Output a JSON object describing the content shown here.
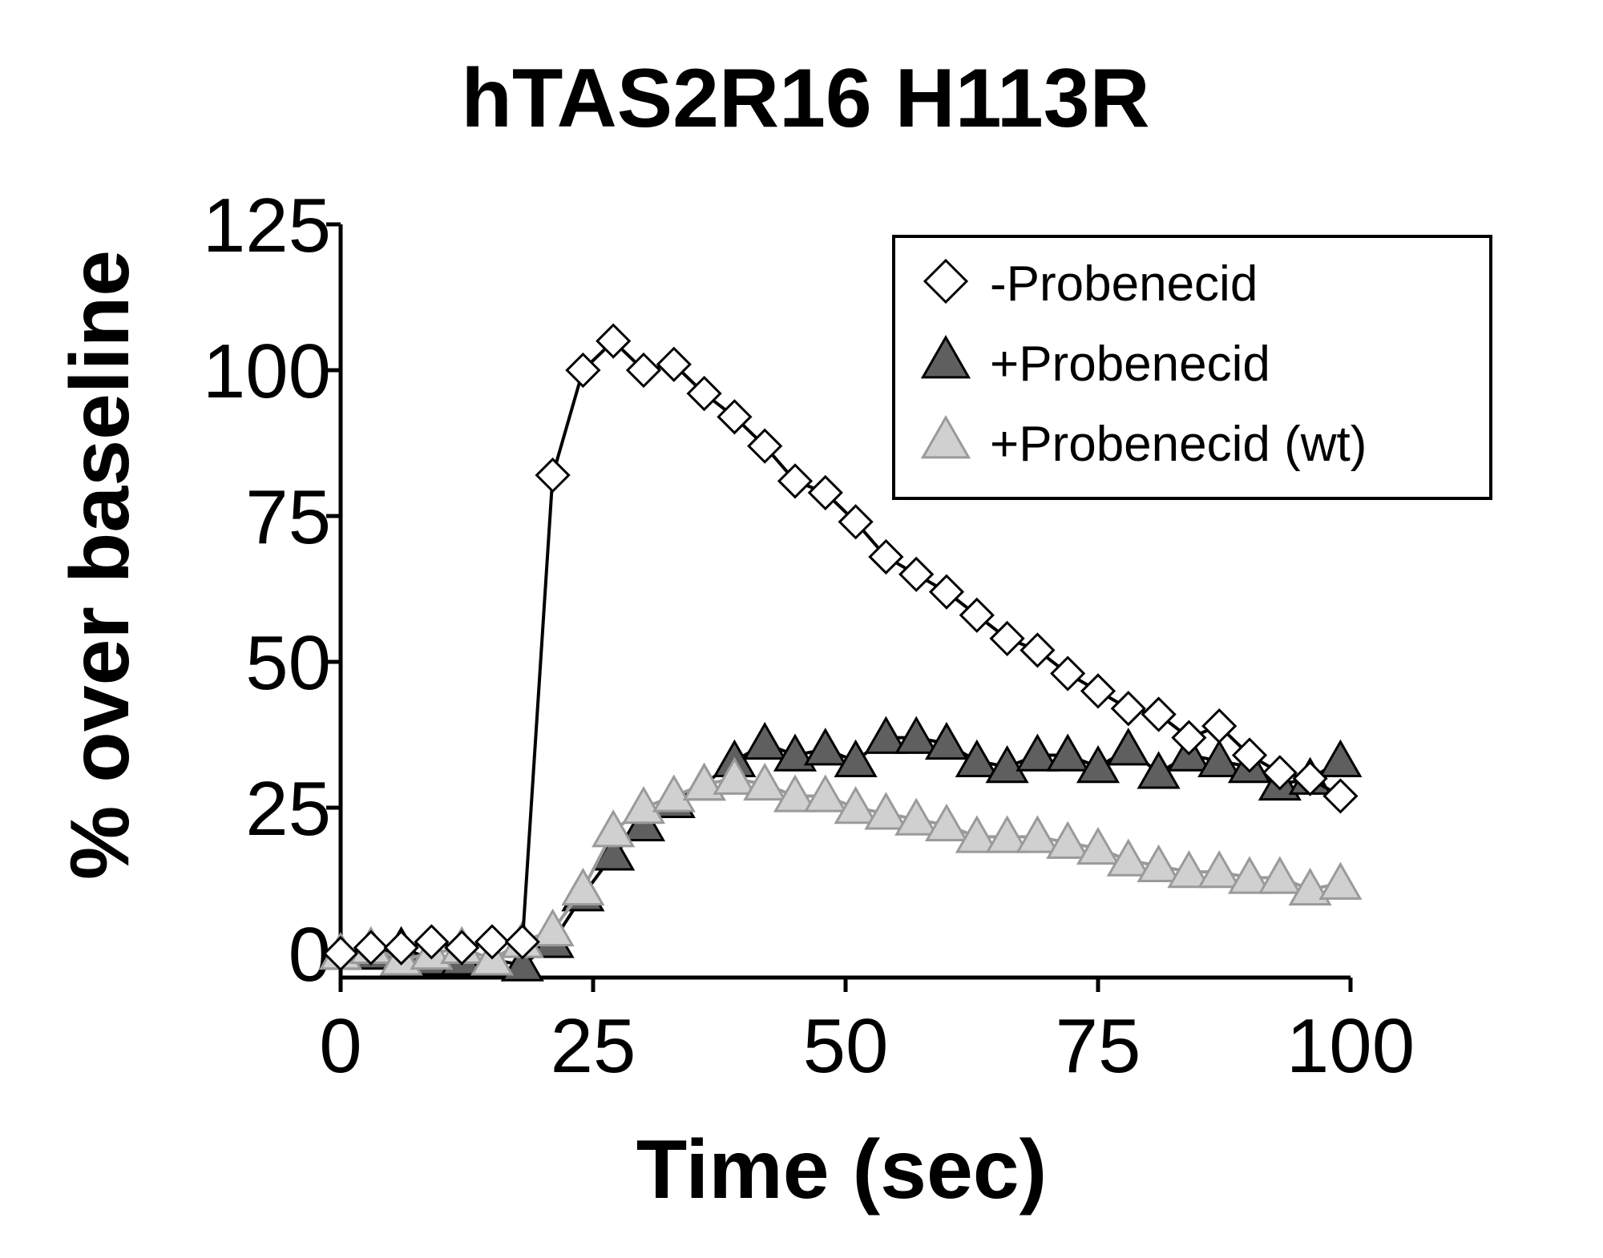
{
  "chart_data": {
    "type": "line",
    "title": "hTAS2R16 H113R",
    "xlabel": "Time (sec)",
    "ylabel": "% over baseline",
    "xlim": [
      0,
      100
    ],
    "ylim": [
      0,
      125
    ],
    "xticks": [
      "0",
      "25",
      "50",
      "75",
      "100"
    ],
    "yticks": [
      "0",
      "25",
      "50",
      "75",
      "100",
      "125"
    ],
    "grid": false,
    "legend_position": "top-right",
    "series": [
      {
        "name": "-Probenecid",
        "marker": "diamond",
        "fill": "#ffffff",
        "stroke": "#000000",
        "line": "#000000",
        "x": [
          0,
          3,
          6,
          9,
          12,
          15,
          18,
          21,
          24,
          27,
          30,
          33,
          36,
          39,
          42,
          45,
          48,
          51,
          54,
          57,
          60,
          63,
          66,
          69,
          72,
          75,
          78,
          81,
          84,
          87,
          90,
          93,
          96,
          99
        ],
        "values": [
          0,
          1,
          1,
          2,
          1,
          2,
          2,
          82,
          100,
          105,
          100,
          101,
          96,
          92,
          87,
          81,
          79,
          74,
          68,
          65,
          62,
          58,
          54,
          52,
          48,
          45,
          42,
          41,
          37,
          39,
          34,
          31,
          30,
          27
        ]
      },
      {
        "name": "+Probenecid",
        "marker": "triangle",
        "fill": "#5f5f5f",
        "stroke": "#000000",
        "line": "#000000",
        "x": [
          0,
          3,
          6,
          9,
          12,
          15,
          18,
          21,
          24,
          27,
          30,
          33,
          36,
          39,
          42,
          45,
          48,
          51,
          54,
          57,
          60,
          63,
          66,
          69,
          72,
          75,
          78,
          81,
          84,
          87,
          90,
          93,
          96,
          99
        ],
        "values": [
          0,
          0,
          1,
          -1,
          -1,
          -1,
          -2,
          2,
          10,
          17,
          22,
          26,
          29,
          33,
          36,
          34,
          35,
          33,
          37,
          37,
          36,
          33,
          32,
          34,
          34,
          32,
          35,
          31,
          34,
          33,
          32,
          29,
          30,
          33
        ]
      },
      {
        "name": "+Probenecid (wt)",
        "marker": "triangle",
        "fill": "#d0d0d0",
        "stroke": "#9a9a9a",
        "line": "#9a9a9a",
        "x": [
          0,
          3,
          6,
          9,
          12,
          15,
          18,
          21,
          24,
          27,
          30,
          33,
          36,
          39,
          42,
          45,
          48,
          51,
          54,
          57,
          60,
          63,
          66,
          69,
          72,
          75,
          78,
          81,
          84,
          87,
          90,
          93,
          96,
          99
        ],
        "values": [
          0,
          1,
          -1,
          0,
          1,
          -1,
          2,
          4,
          11,
          21,
          25,
          27,
          29,
          30,
          29,
          27,
          27,
          25,
          24,
          23,
          22,
          20,
          20,
          20,
          19,
          18,
          16,
          15,
          14,
          14,
          13,
          13,
          11,
          12
        ]
      }
    ]
  }
}
